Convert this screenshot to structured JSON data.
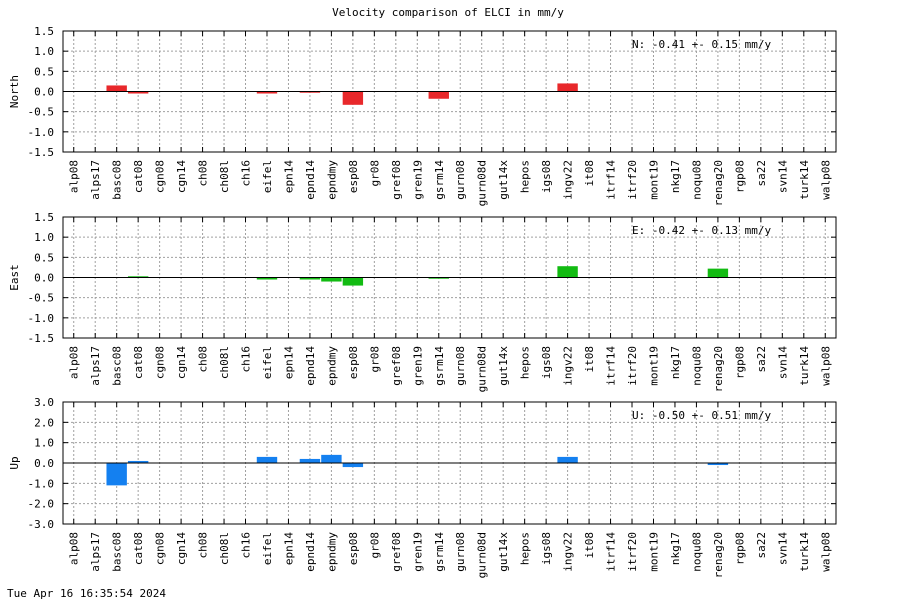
{
  "title": "Velocity comparison of ELCI in mm/y",
  "footer_timestamp": "Tue Apr 16 16:35:54 2024",
  "chart_data": [
    {
      "type": "bar",
      "panel": "north",
      "ylabel": "North",
      "annotation": "N:  -0.41 +-  0.15 mm/y",
      "ylim": [
        -1.5,
        1.5
      ],
      "yticks": [
        "-1.5",
        "-1.0",
        "-0.5",
        "0.0",
        "0.5",
        "1.0",
        "1.5"
      ],
      "ytick_values": [
        -1.5,
        -1.0,
        -0.5,
        0.0,
        0.5,
        1.0,
        1.5
      ],
      "grid": true,
      "color": "#e8282b",
      "categories": [
        "alp08",
        "alps17",
        "basc08",
        "cat08",
        "cgn08",
        "cgn14",
        "ch08",
        "ch08l",
        "ch16",
        "eifel",
        "epn14",
        "epnd14",
        "epndmy",
        "esp08",
        "gr08",
        "gref08",
        "gren19",
        "gsrm14",
        "gurn08",
        "gurn08d",
        "gut14x",
        "hepos",
        "igs08",
        "ingv22",
        "it08",
        "itrf14",
        "itrf20",
        "mont19",
        "nkg17",
        "noqu08",
        "renag20",
        "rgp08",
        "sa22",
        "svn14",
        "turk14",
        "walp08"
      ],
      "values": [
        0,
        0,
        0.15,
        -0.05,
        0,
        0,
        0,
        0,
        0,
        -0.05,
        0,
        -0.03,
        0,
        -0.33,
        0,
        0,
        0,
        -0.18,
        0,
        0,
        0,
        0,
        0,
        0.2,
        0,
        0,
        0,
        0,
        0,
        0,
        0,
        0,
        0,
        0,
        0,
        0
      ]
    },
    {
      "type": "bar",
      "panel": "east",
      "ylabel": "East",
      "annotation": "E:  -0.42 +-  0.13 mm/y",
      "ylim": [
        -1.5,
        1.5
      ],
      "yticks": [
        "-1.5",
        "-1.0",
        "-0.5",
        "0.0",
        "0.5",
        "1.0",
        "1.5"
      ],
      "ytick_values": [
        -1.5,
        -1.0,
        -0.5,
        0.0,
        0.5,
        1.0,
        1.5
      ],
      "grid": true,
      "color": "#12bb12",
      "categories": [
        "alp08",
        "alps17",
        "basc08",
        "cat08",
        "cgn08",
        "cgn14",
        "ch08",
        "ch08l",
        "ch16",
        "eifel",
        "epn14",
        "epnd14",
        "epndmy",
        "esp08",
        "gr08",
        "gref08",
        "gren19",
        "gsrm14",
        "gurn08",
        "gurn08d",
        "gut14x",
        "hepos",
        "igs08",
        "ingv22",
        "it08",
        "itrf14",
        "itrf20",
        "mont19",
        "nkg17",
        "noqu08",
        "renag20",
        "rgp08",
        "sa22",
        "svn14",
        "turk14",
        "walp08"
      ],
      "values": [
        0,
        0,
        0,
        0.03,
        0,
        0,
        0,
        0,
        0,
        -0.05,
        0,
        -0.05,
        -0.1,
        -0.2,
        0,
        0,
        0,
        -0.03,
        0,
        0,
        0,
        0,
        0,
        0.28,
        0,
        0,
        0,
        0,
        0,
        0,
        0.22,
        0,
        0,
        0,
        0,
        0
      ]
    },
    {
      "type": "bar",
      "panel": "up",
      "ylabel": "Up",
      "annotation": "U:  -0.50 +-  0.51 mm/y",
      "ylim": [
        -3.0,
        3.0
      ],
      "yticks": [
        "-3.0",
        "-2.0",
        "-1.0",
        "0.0",
        "1.0",
        "2.0",
        "3.0"
      ],
      "ytick_values": [
        -3.0,
        -2.0,
        -1.0,
        0.0,
        1.0,
        2.0,
        3.0
      ],
      "grid": true,
      "color": "#1480f0",
      "categories": [
        "alp08",
        "alps17",
        "basc08",
        "cat08",
        "cgn08",
        "cgn14",
        "ch08",
        "ch08l",
        "ch16",
        "eifel",
        "epn14",
        "epnd14",
        "epndmy",
        "esp08",
        "gr08",
        "gref08",
        "gren19",
        "gsrm14",
        "gurn08",
        "gurn08d",
        "gut14x",
        "hepos",
        "igs08",
        "ingv22",
        "it08",
        "itrf14",
        "itrf20",
        "mont19",
        "nkg17",
        "noqu08",
        "renag20",
        "rgp08",
        "sa22",
        "svn14",
        "turk14",
        "walp08"
      ],
      "values": [
        0,
        0,
        -1.1,
        0.1,
        0,
        0,
        0,
        0,
        0,
        0.3,
        0,
        0.2,
        0.4,
        -0.2,
        0,
        0,
        0,
        0,
        0,
        0,
        0,
        0,
        0,
        0.3,
        0,
        0,
        0,
        0,
        0,
        0,
        -0.1,
        0,
        0,
        0,
        0,
        0
      ]
    }
  ]
}
